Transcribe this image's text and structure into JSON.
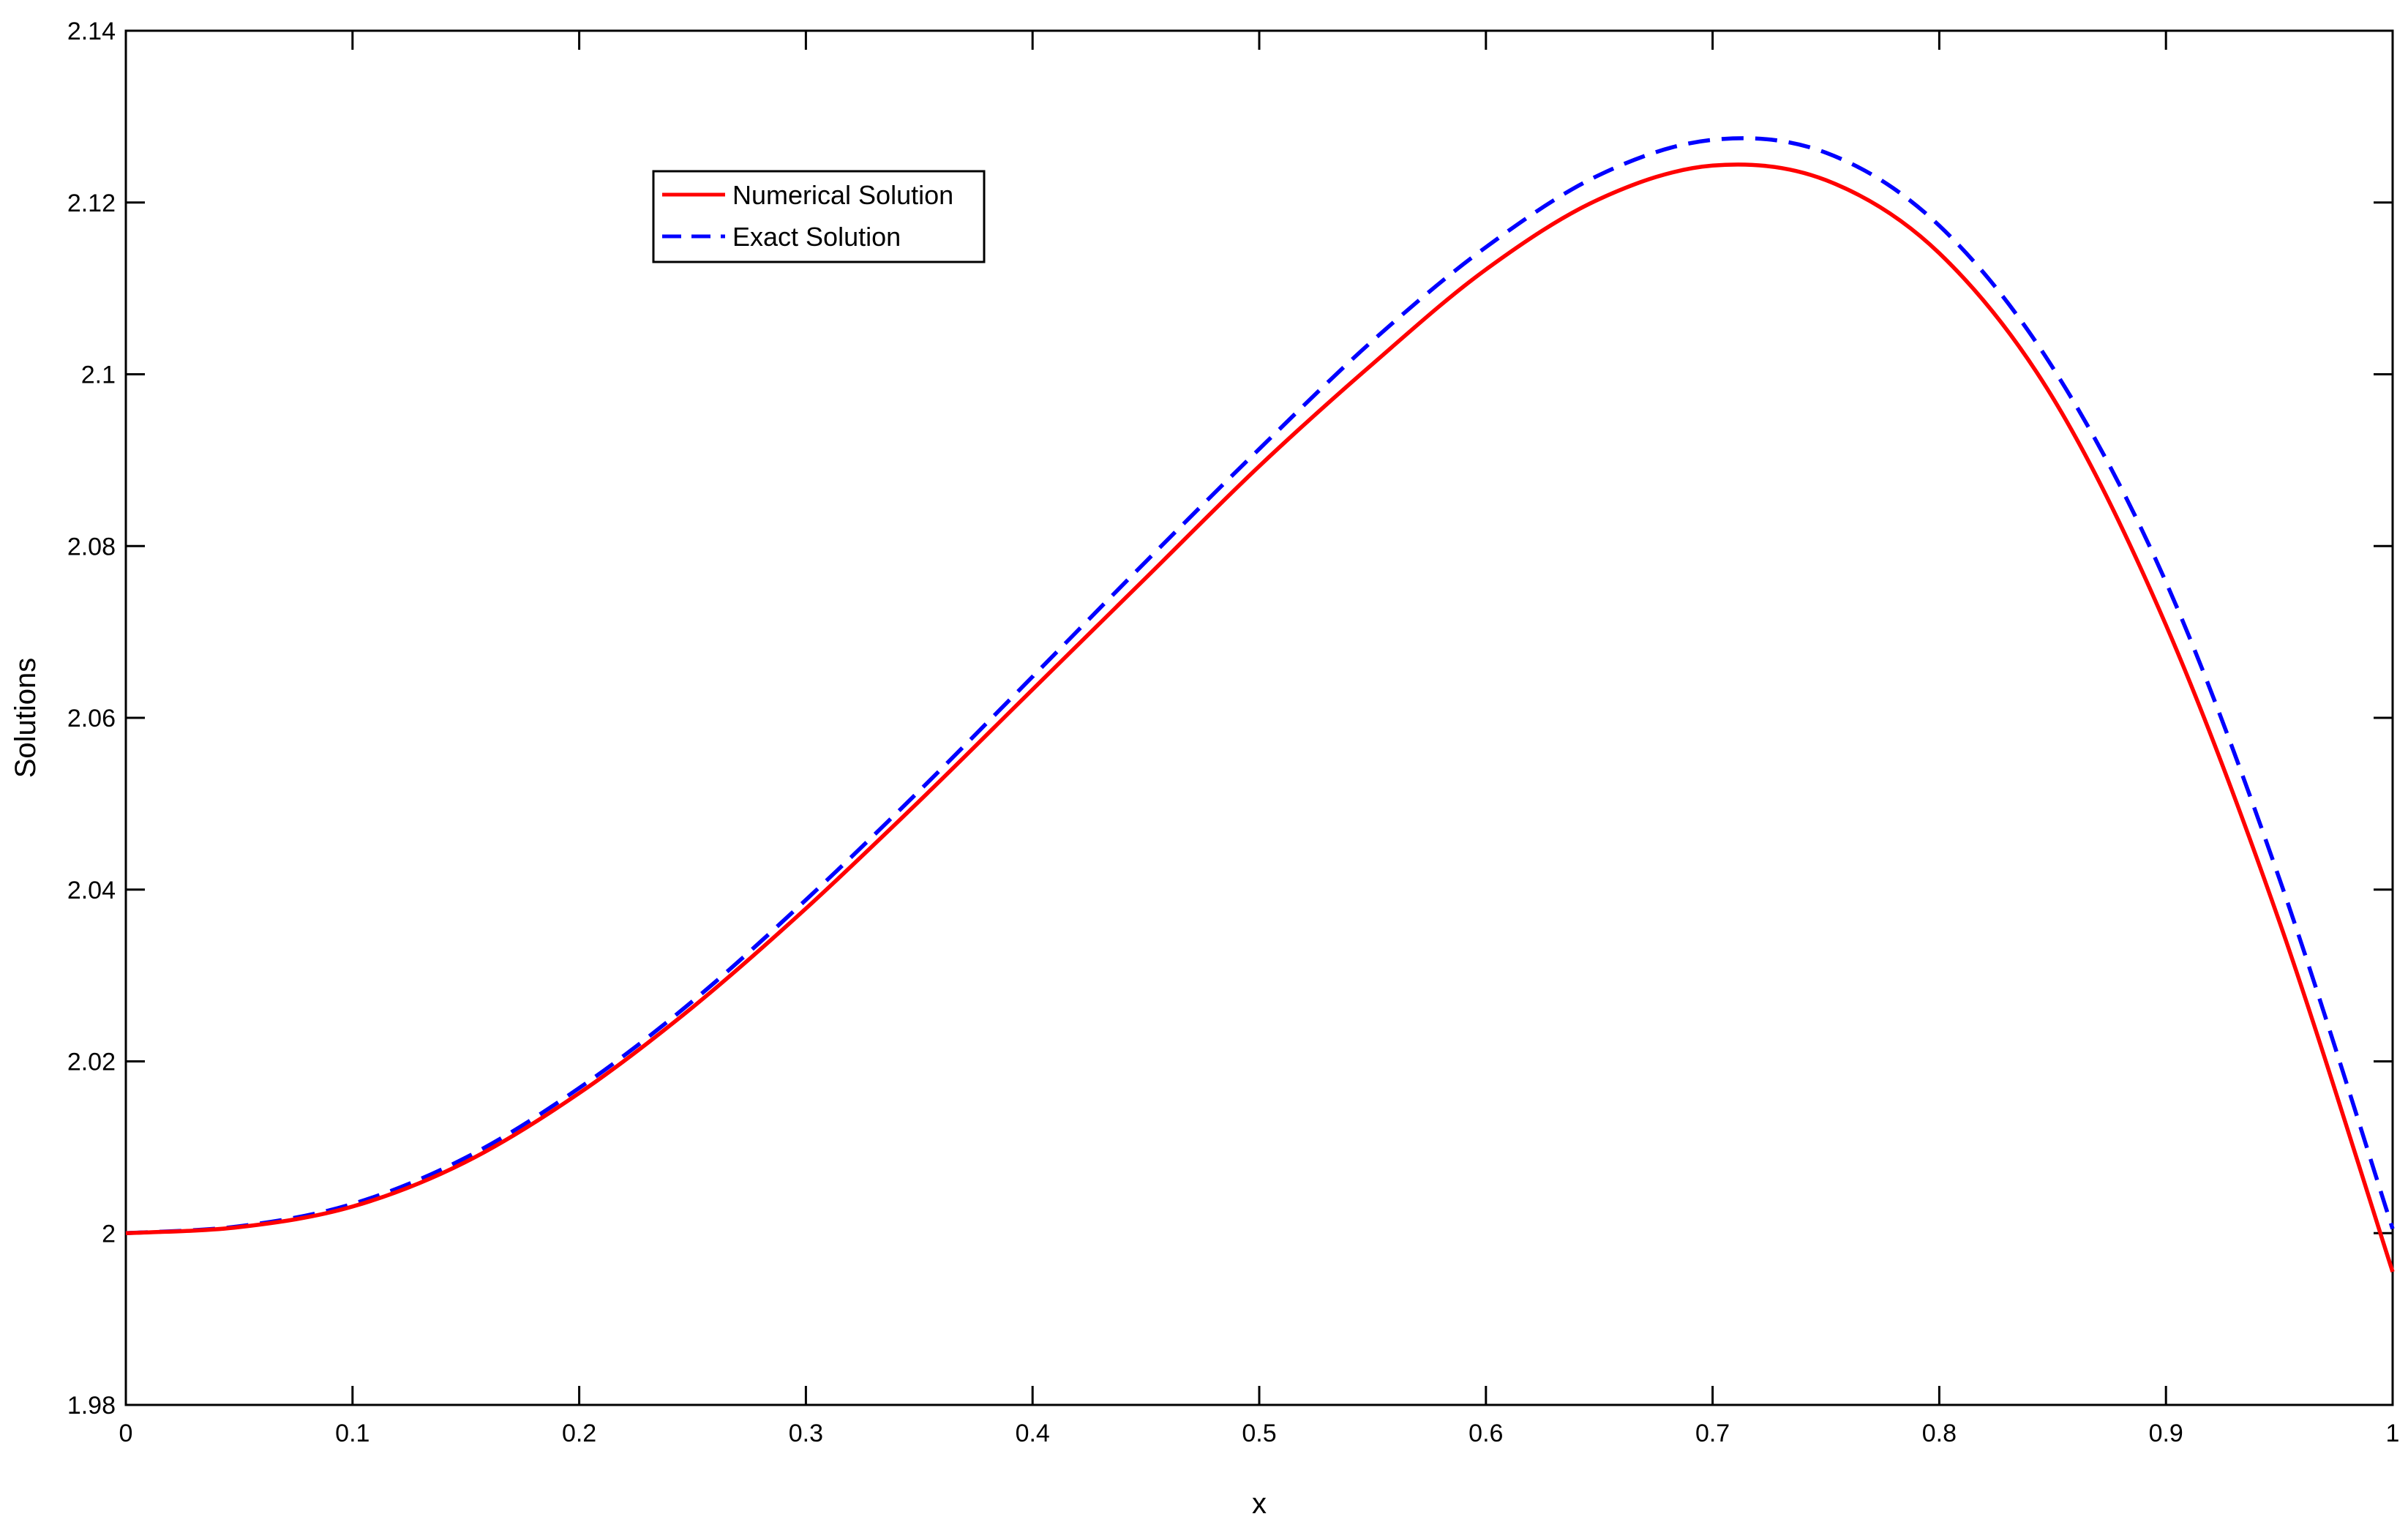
{
  "chart_data": {
    "type": "line",
    "xlabel": "x",
    "ylabel": "Solutions",
    "xlim": [
      0,
      1
    ],
    "ylim": [
      1.98,
      2.14
    ],
    "xticks": [
      0,
      0.1,
      0.2,
      0.3,
      0.4,
      0.5,
      0.6,
      0.7,
      0.8,
      0.9,
      1
    ],
    "xtick_labels": [
      "0",
      "0.1",
      "0.2",
      "0.3",
      "0.4",
      "0.5",
      "0.6",
      "0.7",
      "0.8",
      "0.9",
      "1"
    ],
    "yticks": [
      1.98,
      2,
      2.02,
      2.04,
      2.06,
      2.08,
      2.1,
      2.12,
      2.14
    ],
    "ytick_labels": [
      "1.98",
      "2",
      "2.02",
      "2.04",
      "2.06",
      "2.08",
      "2.1",
      "2.12",
      "2.14"
    ],
    "grid": false,
    "legend_position": "top-left",
    "x": [
      0,
      0.05,
      0.1,
      0.15,
      0.2,
      0.25,
      0.3,
      0.35,
      0.4,
      0.45,
      0.5,
      0.55,
      0.6,
      0.65,
      0.7,
      0.75,
      0.8,
      0.85,
      0.9,
      0.95,
      1
    ],
    "series": [
      {
        "name": "Numerical Solution",
        "color": "#ff0000",
        "style": "solid",
        "values": [
          2.0,
          2.0007,
          2.0031,
          2.0083,
          2.0163,
          2.0263,
          2.0378,
          2.0503,
          2.0633,
          2.0763,
          2.0893,
          2.1012,
          2.1122,
          2.1204,
          2.1243,
          2.1226,
          2.1141,
          2.0973,
          2.0708,
          2.0363,
          1.9955
        ]
      },
      {
        "name": "Exact Solution",
        "color": "#0000ff",
        "style": "dashed",
        "values": [
          2.0,
          2.0008,
          2.0034,
          2.0088,
          2.0169,
          2.027,
          2.0388,
          2.0515,
          2.0648,
          2.0782,
          2.0913,
          2.1039,
          2.1148,
          2.1232,
          2.1273,
          2.1258,
          2.1173,
          2.1008,
          2.0758,
          2.0413,
          2.0005
        ]
      }
    ]
  }
}
